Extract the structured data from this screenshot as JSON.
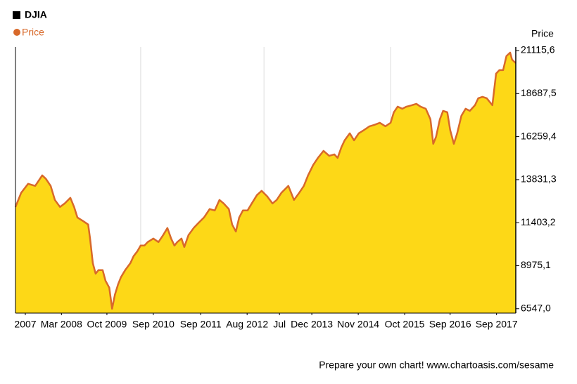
{
  "chart_data": {
    "type": "area",
    "legend_title": "DJIA",
    "y_label": "Price",
    "footer": "Prepare your own chart! www.chartoasis.com/sesame",
    "x": [
      2007.0,
      2007.12,
      2007.27,
      2007.42,
      2007.57,
      2007.65,
      2007.75,
      2007.84,
      2007.95,
      2008.05,
      2008.17,
      2008.25,
      2008.32,
      2008.44,
      2008.55,
      2008.59,
      2008.65,
      2008.71,
      2008.77,
      2008.86,
      2008.92,
      2009.0,
      2009.06,
      2009.12,
      2009.19,
      2009.25,
      2009.34,
      2009.45,
      2009.52,
      2009.6,
      2009.67,
      2009.75,
      2009.82,
      2009.94,
      2010.05,
      2010.15,
      2010.24,
      2010.32,
      2010.39,
      2010.45,
      2010.54,
      2010.6,
      2010.69,
      2010.8,
      2010.9,
      2011.02,
      2011.14,
      2011.25,
      2011.35,
      2011.44,
      2011.55,
      2011.62,
      2011.7,
      2011.77,
      2011.85,
      2011.95,
      2012.04,
      2012.15,
      2012.25,
      2012.37,
      2012.48,
      2012.57,
      2012.67,
      2012.82,
      2012.94,
      2013.05,
      2013.15,
      2013.24,
      2013.35,
      2013.45,
      2013.57,
      2013.69,
      2013.8,
      2013.87,
      2013.95,
      2014.02,
      2014.13,
      2014.22,
      2014.32,
      2014.44,
      2014.55,
      2014.65,
      2014.77,
      2014.89,
      2015.0,
      2015.07,
      2015.15,
      2015.25,
      2015.34,
      2015.45,
      2015.55,
      2015.64,
      2015.75,
      2015.85,
      2015.91,
      2015.97,
      2016.05,
      2016.12,
      2016.21,
      2016.27,
      2016.35,
      2016.42,
      2016.51,
      2016.6,
      2016.69,
      2016.8,
      2016.87,
      2016.96,
      2017.05,
      2017.17,
      2017.25,
      2017.32,
      2017.4,
      2017.47,
      2017.55,
      2017.59,
      2017.67
    ],
    "series": [
      {
        "name": "Price",
        "color": "#d8692a",
        "fill": "#fdd817",
        "values": [
          12289,
          13081,
          13596,
          13477,
          14071,
          13873,
          13477,
          12685,
          12289,
          12487,
          12804,
          12289,
          11695,
          11497,
          11299,
          10507,
          9121,
          8527,
          8725,
          8725,
          8131,
          7735,
          6547,
          7339,
          7933,
          8329,
          8725,
          9121,
          9517,
          9794,
          10111,
          10111,
          10309,
          10507,
          10309,
          10705,
          11101,
          10507,
          10111,
          10309,
          10507,
          10032,
          10705,
          11101,
          11378,
          11695,
          12170,
          12091,
          12685,
          12487,
          12170,
          11299,
          10903,
          11695,
          12091,
          12091,
          12487,
          12962,
          13200,
          12883,
          12487,
          12685,
          13081,
          13477,
          12685,
          13081,
          13477,
          14071,
          14665,
          15061,
          15457,
          15180,
          15259,
          15061,
          15655,
          16051,
          16447,
          16051,
          16447,
          16645,
          16843,
          16922,
          17041,
          16843,
          17041,
          17635,
          17952,
          17833,
          17952,
          18031,
          18110,
          17952,
          17833,
          17239,
          15853,
          16249,
          17239,
          17714,
          17635,
          16645,
          15853,
          16447,
          17437,
          17833,
          17714,
          18031,
          18427,
          18506,
          18427,
          18031,
          19813,
          20011,
          20011,
          20803,
          21001,
          20605,
          20407
        ]
      }
    ],
    "xlim": [
      2007,
      2017.67
    ],
    "xticks": [
      {
        "value": 2007.21,
        "label": "2007"
      },
      {
        "value": 2007.98,
        "label": "Mar 2008"
      },
      {
        "value": 2008.95,
        "label": "Oct 2009"
      },
      {
        "value": 2009.94,
        "label": "Sep 2010"
      },
      {
        "value": 2010.95,
        "label": "Sep 2011"
      },
      {
        "value": 2011.94,
        "label": "Aug 2012"
      },
      {
        "value": 2012.63,
        "label": "Jul"
      },
      {
        "value": 2013.32,
        "label": "Dec 2013"
      },
      {
        "value": 2014.31,
        "label": "Nov 2014"
      },
      {
        "value": 2015.3,
        "label": "Oct 2015"
      },
      {
        "value": 2016.27,
        "label": "Sep 2016"
      },
      {
        "value": 2017.26,
        "label": "Sep 2017"
      }
    ],
    "xgrid": [
      2009.67,
      2012.3,
      2015.0
    ],
    "ylim": [
      6300,
      21315
    ],
    "yticks": [
      {
        "value": 6547.0,
        "label": "6547,0"
      },
      {
        "value": 8975.1,
        "label": "8975,1"
      },
      {
        "value": 11403.2,
        "label": "11403,2"
      },
      {
        "value": 13831.3,
        "label": "13831,3"
      },
      {
        "value": 16259.4,
        "label": "16259,4"
      },
      {
        "value": 18687.5,
        "label": "18687,5"
      },
      {
        "value": 21115.6,
        "label": "21115,6"
      }
    ]
  }
}
